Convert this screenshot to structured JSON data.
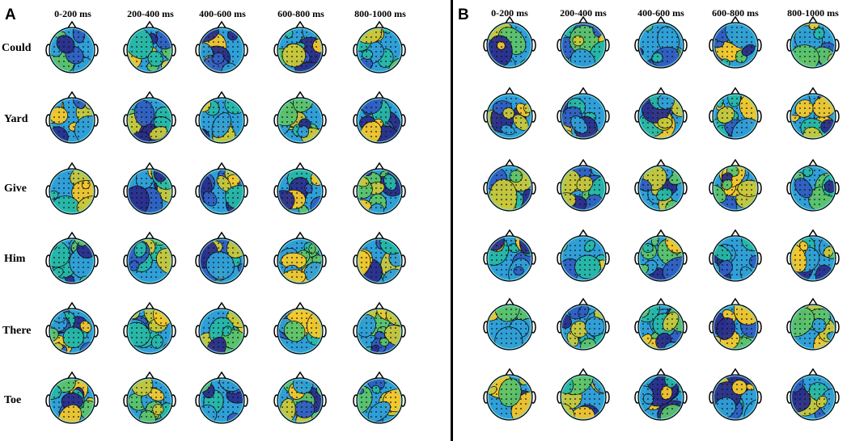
{
  "figure": {
    "panels": [
      {
        "letter": "A",
        "time_windows": [
          "0-200 ms",
          "200-400 ms",
          "400-600 ms",
          "600-800 ms",
          "800-1000 ms"
        ],
        "words": [
          "Could",
          "Yard",
          "Give",
          "Him",
          "There",
          "Toe"
        ]
      },
      {
        "letter": "B",
        "time_windows": [
          "0-200 ms",
          "200-400 ms",
          "400-600 ms",
          "600-800 ms",
          "800-1000 ms"
        ]
      }
    ],
    "colormap": [
      "#2a2e8c",
      "#2f5fc4",
      "#2f9fd8",
      "#26b8a8",
      "#5cc46a",
      "#c8c83a",
      "#f2c82c"
    ],
    "map_rows": 6,
    "map_cols": 5
  }
}
